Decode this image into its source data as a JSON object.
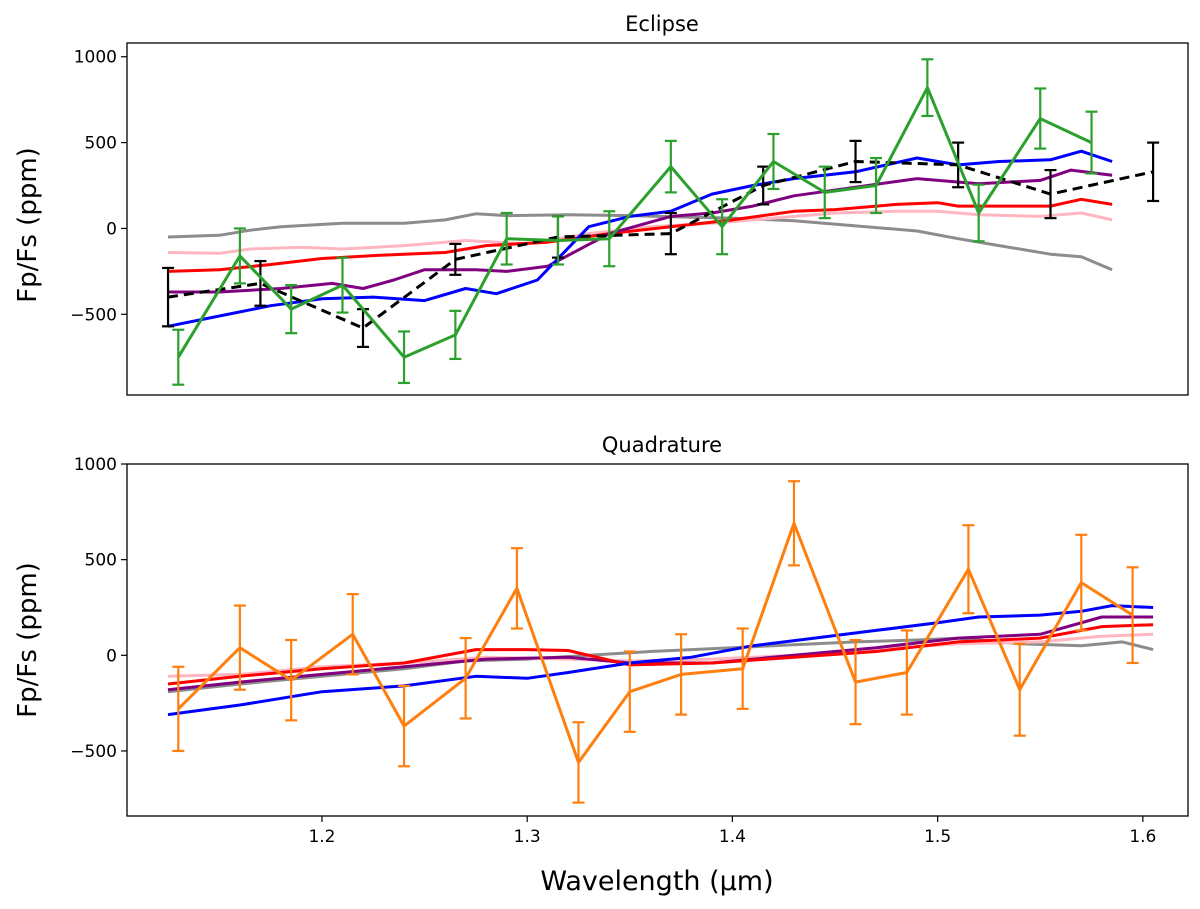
{
  "chart_data": [
    {
      "type": "line",
      "title": "Eclipse",
      "xlabel": "",
      "ylabel": "Fp/Fs (ppm)",
      "xlim": [
        1.105,
        1.622
      ],
      "ylim": [
        -970,
        1080
      ],
      "xticks": [],
      "yticks": [
        -500,
        0,
        500,
        1000
      ],
      "ytick_labels": [
        "−500",
        "0",
        "500",
        "1000"
      ],
      "series": [
        {
          "name": "gray model",
          "color": "#8c8c8c",
          "style": "solid",
          "x": [
            1.125,
            1.15,
            1.165,
            1.18,
            1.21,
            1.24,
            1.26,
            1.275,
            1.29,
            1.32,
            1.35,
            1.38,
            1.4,
            1.43,
            1.46,
            1.48,
            1.49,
            1.51,
            1.53,
            1.555,
            1.57,
            1.585
          ],
          "y": [
            -50,
            -40,
            -10,
            10,
            30,
            30,
            50,
            85,
            75,
            80,
            75,
            65,
            60,
            45,
            15,
            -5,
            -15,
            -60,
            -100,
            -150,
            -165,
            -240
          ]
        },
        {
          "name": "pink model",
          "color": "#ffb6c1",
          "style": "solid",
          "x": [
            1.125,
            1.15,
            1.165,
            1.19,
            1.21,
            1.24,
            1.27,
            1.3,
            1.33,
            1.36,
            1.39,
            1.42,
            1.45,
            1.48,
            1.5,
            1.52,
            1.55,
            1.57,
            1.585
          ],
          "y": [
            -140,
            -145,
            -120,
            -110,
            -120,
            -100,
            -70,
            -90,
            -30,
            10,
            30,
            60,
            90,
            100,
            100,
            80,
            70,
            90,
            50
          ]
        },
        {
          "name": "red model",
          "color": "#ff0000",
          "style": "solid",
          "x": [
            1.125,
            1.15,
            1.175,
            1.2,
            1.23,
            1.26,
            1.28,
            1.31,
            1.34,
            1.37,
            1.4,
            1.43,
            1.45,
            1.48,
            1.5,
            1.51,
            1.53,
            1.555,
            1.57,
            1.585
          ],
          "y": [
            -250,
            -240,
            -210,
            -175,
            -155,
            -140,
            -100,
            -80,
            -30,
            10,
            50,
            100,
            110,
            140,
            150,
            130,
            130,
            130,
            170,
            140
          ]
        },
        {
          "name": "purple model",
          "color": "#800080",
          "style": "solid",
          "x": [
            1.125,
            1.15,
            1.18,
            1.205,
            1.22,
            1.235,
            1.25,
            1.275,
            1.29,
            1.31,
            1.34,
            1.37,
            1.39,
            1.41,
            1.43,
            1.46,
            1.49,
            1.52,
            1.55,
            1.565,
            1.585
          ],
          "y": [
            -370,
            -370,
            -350,
            -320,
            -350,
            -300,
            -240,
            -240,
            -250,
            -220,
            -30,
            70,
            90,
            130,
            190,
            240,
            290,
            260,
            280,
            340,
            310
          ]
        },
        {
          "name": "blue model",
          "color": "#0000ff",
          "style": "solid",
          "x": [
            1.125,
            1.15,
            1.175,
            1.2,
            1.225,
            1.25,
            1.27,
            1.285,
            1.305,
            1.33,
            1.35,
            1.37,
            1.39,
            1.41,
            1.43,
            1.46,
            1.49,
            1.51,
            1.53,
            1.555,
            1.57,
            1.585
          ],
          "y": [
            -570,
            -510,
            -450,
            -410,
            -400,
            -420,
            -350,
            -380,
            -300,
            10,
            70,
            100,
            200,
            250,
            290,
            330,
            410,
            370,
            390,
            400,
            450,
            390
          ]
        },
        {
          "name": "black dashed model",
          "color": "#000000",
          "style": "dashed",
          "x": [
            1.125,
            1.17,
            1.22,
            1.265,
            1.315,
            1.37,
            1.415,
            1.46,
            1.51,
            1.555,
            1.605
          ],
          "y": [
            -400,
            -320,
            -580,
            -180,
            -50,
            -30,
            250,
            390,
            370,
            200,
            330
          ],
          "err": [
            170,
            130,
            110,
            90,
            120,
            120,
            110,
            120,
            130,
            140,
            170
          ]
        },
        {
          "name": "green data",
          "color": "#2ca02c",
          "style": "solid",
          "x": [
            1.13,
            1.16,
            1.185,
            1.21,
            1.24,
            1.265,
            1.29,
            1.315,
            1.34,
            1.37,
            1.395,
            1.42,
            1.445,
            1.47,
            1.495,
            1.52,
            1.55,
            1.575
          ],
          "y": [
            -750,
            -160,
            -470,
            -330,
            -750,
            -620,
            -60,
            -70,
            -60,
            360,
            10,
            390,
            210,
            250,
            820,
            90,
            640,
            500
          ],
          "err": [
            160,
            160,
            140,
            160,
            150,
            140,
            150,
            140,
            160,
            150,
            160,
            160,
            150,
            160,
            165,
            165,
            175,
            180
          ]
        }
      ]
    },
    {
      "type": "line",
      "title": "Quadrature",
      "xlabel": "Wavelength (μm)",
      "ylabel": "Fp/Fs (ppm)",
      "xlim": [
        1.105,
        1.622
      ],
      "ylim": [
        -840,
        1000
      ],
      "xticks": [
        1.2,
        1.3,
        1.4,
        1.5,
        1.6
      ],
      "xtick_labels": [
        "1.2",
        "1.3",
        "1.4",
        "1.5",
        "1.6"
      ],
      "yticks": [
        -500,
        0,
        500,
        1000
      ],
      "ytick_labels": [
        "−500",
        "0",
        "500",
        "1000"
      ],
      "series": [
        {
          "name": "gray model",
          "color": "#8c8c8c",
          "style": "solid",
          "x": [
            1.125,
            1.16,
            1.2,
            1.24,
            1.27,
            1.3,
            1.33,
            1.36,
            1.4,
            1.43,
            1.46,
            1.49,
            1.51,
            1.54,
            1.57,
            1.59,
            1.605
          ],
          "y": [
            -190,
            -150,
            -110,
            -70,
            -30,
            -20,
            0,
            20,
            40,
            55,
            70,
            80,
            90,
            60,
            50,
            70,
            30
          ]
        },
        {
          "name": "pink model",
          "color": "#ffb6c1",
          "style": "solid",
          "x": [
            1.125,
            1.16,
            1.2,
            1.24,
            1.28,
            1.32,
            1.35,
            1.39,
            1.43,
            1.47,
            1.51,
            1.55,
            1.58,
            1.605
          ],
          "y": [
            -110,
            -100,
            -60,
            -40,
            -10,
            -20,
            -30,
            -20,
            0,
            30,
            60,
            70,
            100,
            110
          ]
        },
        {
          "name": "purple model",
          "color": "#800080",
          "style": "solid",
          "x": [
            1.125,
            1.16,
            1.2,
            1.24,
            1.28,
            1.32,
            1.35,
            1.39,
            1.43,
            1.47,
            1.51,
            1.55,
            1.58,
            1.605
          ],
          "y": [
            -180,
            -140,
            -100,
            -60,
            -20,
            -10,
            -40,
            -40,
            0,
            40,
            90,
            110,
            200,
            200
          ]
        },
        {
          "name": "red model",
          "color": "#ff0000",
          "style": "solid",
          "x": [
            1.125,
            1.16,
            1.2,
            1.24,
            1.275,
            1.3,
            1.32,
            1.35,
            1.39,
            1.43,
            1.47,
            1.51,
            1.55,
            1.58,
            1.605
          ],
          "y": [
            -150,
            -110,
            -70,
            -40,
            30,
            30,
            25,
            -50,
            -40,
            -10,
            20,
            70,
            90,
            150,
            160
          ]
        },
        {
          "name": "blue model",
          "color": "#0000ff",
          "style": "solid",
          "x": [
            1.125,
            1.16,
            1.2,
            1.24,
            1.275,
            1.3,
            1.32,
            1.35,
            1.38,
            1.41,
            1.44,
            1.47,
            1.5,
            1.52,
            1.55,
            1.57,
            1.585,
            1.605
          ],
          "y": [
            -310,
            -260,
            -190,
            -160,
            -110,
            -120,
            -90,
            -40,
            -10,
            50,
            90,
            130,
            170,
            200,
            210,
            230,
            260,
            250
          ]
        },
        {
          "name": "orange data",
          "color": "#ff7f0e",
          "style": "solid",
          "x": [
            1.13,
            1.16,
            1.185,
            1.215,
            1.24,
            1.27,
            1.295,
            1.325,
            1.35,
            1.375,
            1.405,
            1.43,
            1.46,
            1.485,
            1.515,
            1.54,
            1.57,
            1.595
          ],
          "y": [
            -280,
            40,
            -130,
            110,
            -370,
            -120,
            350,
            -560,
            -190,
            -100,
            -70,
            690,
            -140,
            -90,
            450,
            -180,
            380,
            210
          ],
          "err": [
            220,
            220,
            210,
            210,
            210,
            210,
            210,
            210,
            210,
            210,
            210,
            220,
            220,
            220,
            230,
            240,
            250,
            250
          ]
        }
      ]
    }
  ]
}
